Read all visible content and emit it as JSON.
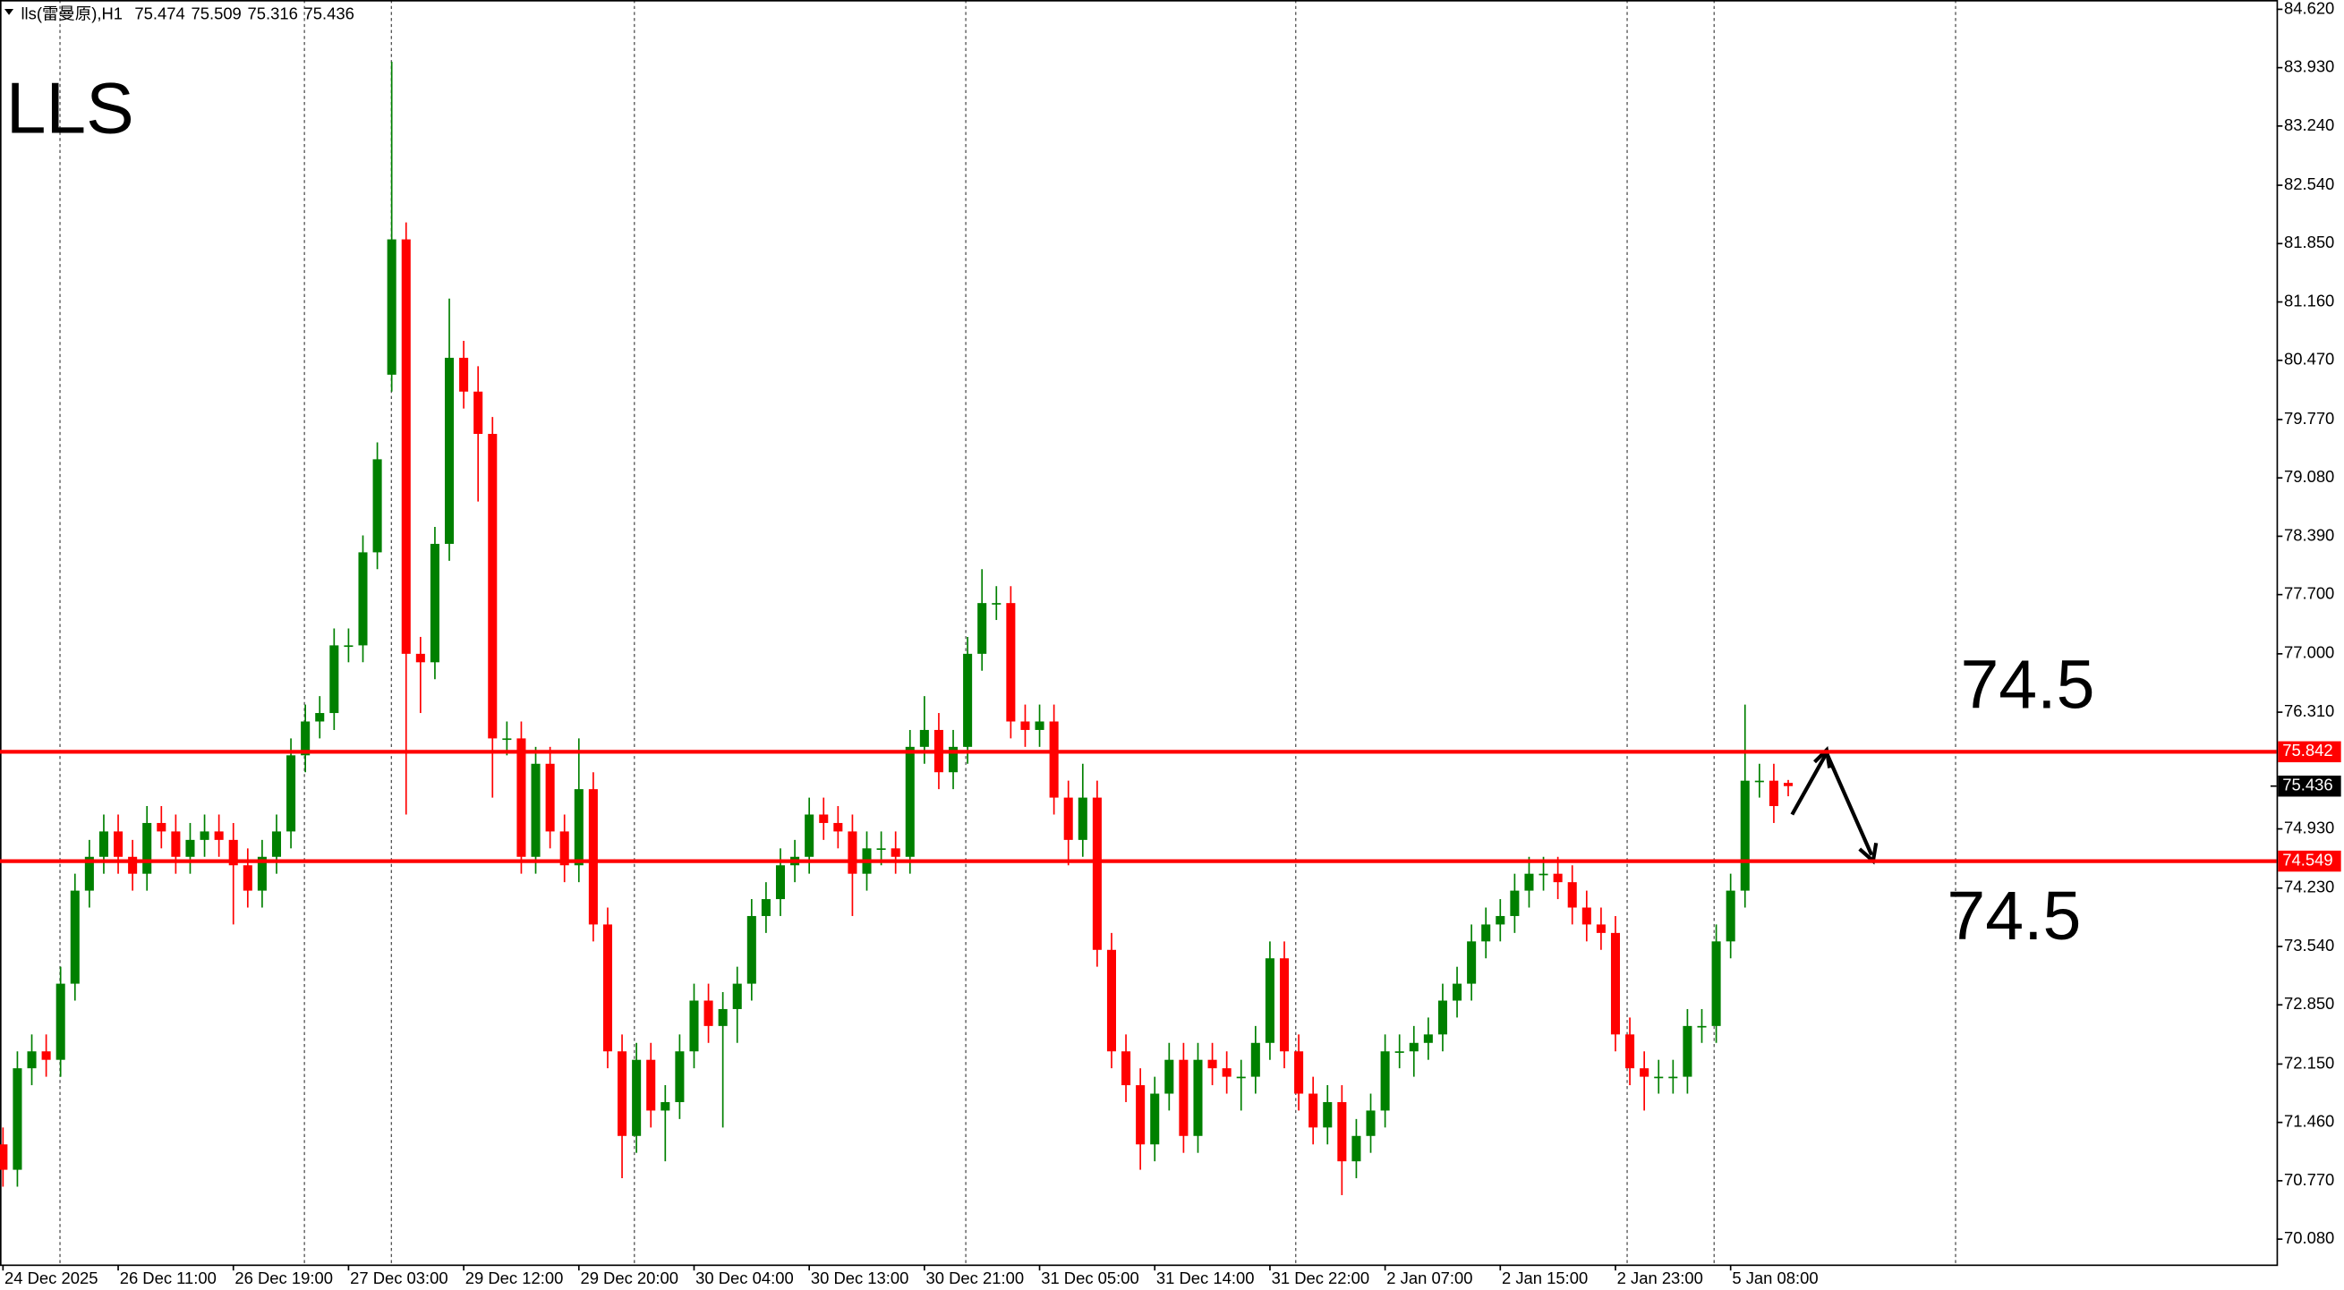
{
  "chart_data": {
    "type": "candlestick",
    "symbol": "lls(雷曼原),H1",
    "title": "LLS",
    "up_color": "#008000",
    "down_color": "#ff0000",
    "ylim": [
      69.78,
      84.73
    ],
    "yticks": [
      {
        "value": 84.62,
        "label": "84.620"
      },
      {
        "value": 83.93,
        "label": "83.930"
      },
      {
        "value": 83.24,
        "label": "83.240"
      },
      {
        "value": 82.54,
        "label": "82.540"
      },
      {
        "value": 81.85,
        "label": "81.850"
      },
      {
        "value": 81.16,
        "label": "81.160"
      },
      {
        "value": 80.47,
        "label": "80.470"
      },
      {
        "value": 79.77,
        "label": "79.770"
      },
      {
        "value": 79.08,
        "label": "79.080"
      },
      {
        "value": 78.39,
        "label": "78.390"
      },
      {
        "value": 77.7,
        "label": "77.700"
      },
      {
        "value": 77.0,
        "label": "77.000"
      },
      {
        "value": 76.31,
        "label": "76.310"
      },
      {
        "value": 74.93,
        "label": "74.930"
      },
      {
        "value": 74.23,
        "label": "74.230"
      },
      {
        "value": 73.54,
        "label": "73.540"
      },
      {
        "value": 72.85,
        "label": "72.850"
      },
      {
        "value": 72.15,
        "label": "72.150"
      },
      {
        "value": 71.46,
        "label": "71.460"
      },
      {
        "value": 70.77,
        "label": "70.770"
      },
      {
        "value": 70.08,
        "label": "70.080"
      }
    ],
    "categories": [
      "24 Dec 2025",
      null,
      null,
      null,
      null,
      null,
      null,
      null,
      "26 Dec 11:00",
      null,
      null,
      null,
      null,
      null,
      null,
      null,
      "26 Dec 19:00",
      null,
      null,
      null,
      null,
      null,
      null,
      null,
      "27 Dec 03:00",
      null,
      null,
      null,
      null,
      null,
      null,
      null,
      "29 Dec 12:00",
      null,
      null,
      null,
      null,
      null,
      null,
      null,
      "29 Dec 20:00",
      null,
      null,
      null,
      null,
      null,
      null,
      null,
      "30 Dec 04:00",
      null,
      null,
      null,
      null,
      null,
      null,
      null,
      "30 Dec 13:00",
      null,
      null,
      null,
      null,
      null,
      null,
      null,
      "30 Dec 21:00",
      null,
      null,
      null,
      null,
      null,
      null,
      null,
      "31 Dec 05:00",
      null,
      null,
      null,
      null,
      null,
      null,
      null,
      "31 Dec 14:00",
      null,
      null,
      null,
      null,
      null,
      null,
      null,
      "31 Dec 22:00",
      null,
      null,
      null,
      null,
      null,
      null,
      null,
      "2 Jan 07:00",
      null,
      null,
      null,
      null,
      null,
      null,
      null,
      "2 Jan 15:00",
      null,
      null,
      null,
      null,
      null,
      null,
      null,
      "2 Jan 23:00",
      null,
      null,
      null,
      null,
      null,
      null,
      null,
      "5 Jan 08:00",
      null,
      null,
      null,
      null
    ],
    "open": [
      71.2,
      70.9,
      72.1,
      72.3,
      72.2,
      73.1,
      74.2,
      74.6,
      74.9,
      74.6,
      74.4,
      75.0,
      74.9,
      74.6,
      74.8,
      74.9,
      74.8,
      74.5,
      74.2,
      74.6,
      74.9,
      75.8,
      76.2,
      76.3,
      77.1,
      77.1,
      78.2,
      80.3,
      81.9,
      77.0,
      76.9,
      78.3,
      80.5,
      80.1,
      79.6,
      76.0,
      76.0,
      74.6,
      75.7,
      74.9,
      74.5,
      75.4,
      73.8,
      72.3,
      71.3,
      72.2,
      71.6,
      71.7,
      72.3,
      72.9,
      72.6,
      72.8,
      73.1,
      73.9,
      74.1,
      74.5,
      74.6,
      75.1,
      75.0,
      74.9,
      74.4,
      74.7,
      74.7,
      74.6,
      75.9,
      76.1,
      75.6,
      75.9,
      77.0,
      77.6,
      77.6,
      76.2,
      76.1,
      76.2,
      75.3,
      74.8,
      75.3,
      73.5,
      72.3,
      71.9,
      71.2,
      71.8,
      72.2,
      71.3,
      72.2,
      72.1,
      72.0,
      72.0,
      72.4,
      73.4,
      72.3,
      71.8,
      71.4,
      71.7,
      71.0,
      71.3,
      71.6,
      72.3,
      72.3,
      72.4,
      72.5,
      72.9,
      73.1,
      73.6,
      73.8,
      73.9,
      74.2,
      74.4,
      74.4,
      74.3,
      74.0,
      73.8,
      73.7,
      72.5,
      72.1,
      72.0,
      72.0,
      72.0,
      72.6,
      72.6,
      73.6,
      74.2,
      75.5,
      75.5,
      75.474
    ],
    "high": [
      71.4,
      72.3,
      72.5,
      72.5,
      73.3,
      74.4,
      74.8,
      75.1,
      75.1,
      74.8,
      75.2,
      75.2,
      75.1,
      75.0,
      75.1,
      75.1,
      75.0,
      74.7,
      74.8,
      75.1,
      76.0,
      76.4,
      76.5,
      77.3,
      77.3,
      78.4,
      79.5,
      84.0,
      82.1,
      77.2,
      78.5,
      81.2,
      80.7,
      80.4,
      79.8,
      76.2,
      76.2,
      75.9,
      75.9,
      75.1,
      76.0,
      75.6,
      74.0,
      72.5,
      72.4,
      72.4,
      71.9,
      72.5,
      73.1,
      73.1,
      73.0,
      73.3,
      74.1,
      74.3,
      74.7,
      74.8,
      75.3,
      75.3,
      75.2,
      75.1,
      74.9,
      74.9,
      74.9,
      76.1,
      76.5,
      76.3,
      76.1,
      77.2,
      78.0,
      77.8,
      77.8,
      76.4,
      76.4,
      76.4,
      75.5,
      75.7,
      75.5,
      73.7,
      72.5,
      72.1,
      72.0,
      72.4,
      72.4,
      72.4,
      72.4,
      72.3,
      72.2,
      72.6,
      73.6,
      73.6,
      72.5,
      72.0,
      71.9,
      71.9,
      71.5,
      71.8,
      72.5,
      72.5,
      72.6,
      72.7,
      73.1,
      73.3,
      73.8,
      74.0,
      74.1,
      74.4,
      74.6,
      74.6,
      74.6,
      74.5,
      74.2,
      74.0,
      73.9,
      72.7,
      72.3,
      72.2,
      72.2,
      72.8,
      72.8,
      73.8,
      74.4,
      76.4,
      75.7,
      75.7,
      75.509
    ],
    "low": [
      70.7,
      70.7,
      71.9,
      72.0,
      72.0,
      72.9,
      74.0,
      74.4,
      74.4,
      74.2,
      74.2,
      74.7,
      74.4,
      74.4,
      74.6,
      74.6,
      73.8,
      74.0,
      74.0,
      74.4,
      74.7,
      75.6,
      76.0,
      76.1,
      76.9,
      76.9,
      78.0,
      80.1,
      75.1,
      76.3,
      76.7,
      78.1,
      79.9,
      78.8,
      75.3,
      75.8,
      74.4,
      74.4,
      74.7,
      74.3,
      74.3,
      73.6,
      72.1,
      70.8,
      71.1,
      71.4,
      71.0,
      71.5,
      72.1,
      72.4,
      71.4,
      72.4,
      72.9,
      73.7,
      73.9,
      74.3,
      74.4,
      74.8,
      74.7,
      73.9,
      74.2,
      74.5,
      74.4,
      74.4,
      75.7,
      75.4,
      75.4,
      75.7,
      76.8,
      77.4,
      76.0,
      75.9,
      75.9,
      75.1,
      74.5,
      74.6,
      73.3,
      72.1,
      71.7,
      70.9,
      71.0,
      71.6,
      71.1,
      71.1,
      71.9,
      71.8,
      71.6,
      71.8,
      72.2,
      72.1,
      71.6,
      71.2,
      71.2,
      70.6,
      70.8,
      71.1,
      71.4,
      72.1,
      72.0,
      72.2,
      72.3,
      72.7,
      72.9,
      73.4,
      73.6,
      73.7,
      74.0,
      74.2,
      74.1,
      73.8,
      73.6,
      73.5,
      72.3,
      71.9,
      71.6,
      71.8,
      71.8,
      71.8,
      72.4,
      72.4,
      73.4,
      74.0,
      75.3,
      75.0,
      75.316
    ],
    "close": [
      70.9,
      72.1,
      72.3,
      72.2,
      73.1,
      74.2,
      74.6,
      74.9,
      74.6,
      74.4,
      75.0,
      74.9,
      74.6,
      74.8,
      74.9,
      74.8,
      74.5,
      74.2,
      74.6,
      74.9,
      75.8,
      76.2,
      76.3,
      77.1,
      77.1,
      78.2,
      79.3,
      81.9,
      77.0,
      76.9,
      78.3,
      80.5,
      80.1,
      79.6,
      76.0,
      76.0,
      74.6,
      75.7,
      74.9,
      74.5,
      75.4,
      73.8,
      72.3,
      71.3,
      72.2,
      71.6,
      71.7,
      72.3,
      72.9,
      72.6,
      72.8,
      73.1,
      73.9,
      74.1,
      74.5,
      74.6,
      75.1,
      75.0,
      74.9,
      74.4,
      74.7,
      74.7,
      74.6,
      75.9,
      76.1,
      75.6,
      75.9,
      77.0,
      77.6,
      77.6,
      76.2,
      76.1,
      76.2,
      75.3,
      74.8,
      75.3,
      73.5,
      72.3,
      71.9,
      71.2,
      71.8,
      72.2,
      71.3,
      72.2,
      72.1,
      72.0,
      72.0,
      72.4,
      73.4,
      72.3,
      71.8,
      71.4,
      71.7,
      71.0,
      71.3,
      71.6,
      72.3,
      72.3,
      72.4,
      72.5,
      72.9,
      73.1,
      73.6,
      73.8,
      73.9,
      74.2,
      74.4,
      74.4,
      74.3,
      74.0,
      73.8,
      73.7,
      72.5,
      72.1,
      72.0,
      72.0,
      72.0,
      72.6,
      72.6,
      73.6,
      74.2,
      75.5,
      75.5,
      75.2,
      75.436
    ],
    "hlines": [
      {
        "value": 75.842,
        "color": "#ff0000"
      },
      {
        "value": 74.549,
        "color": "#ff0000"
      }
    ],
    "annotations": [
      {
        "text": "74.5"
      },
      {
        "text": "74.5"
      }
    ]
  }
}
